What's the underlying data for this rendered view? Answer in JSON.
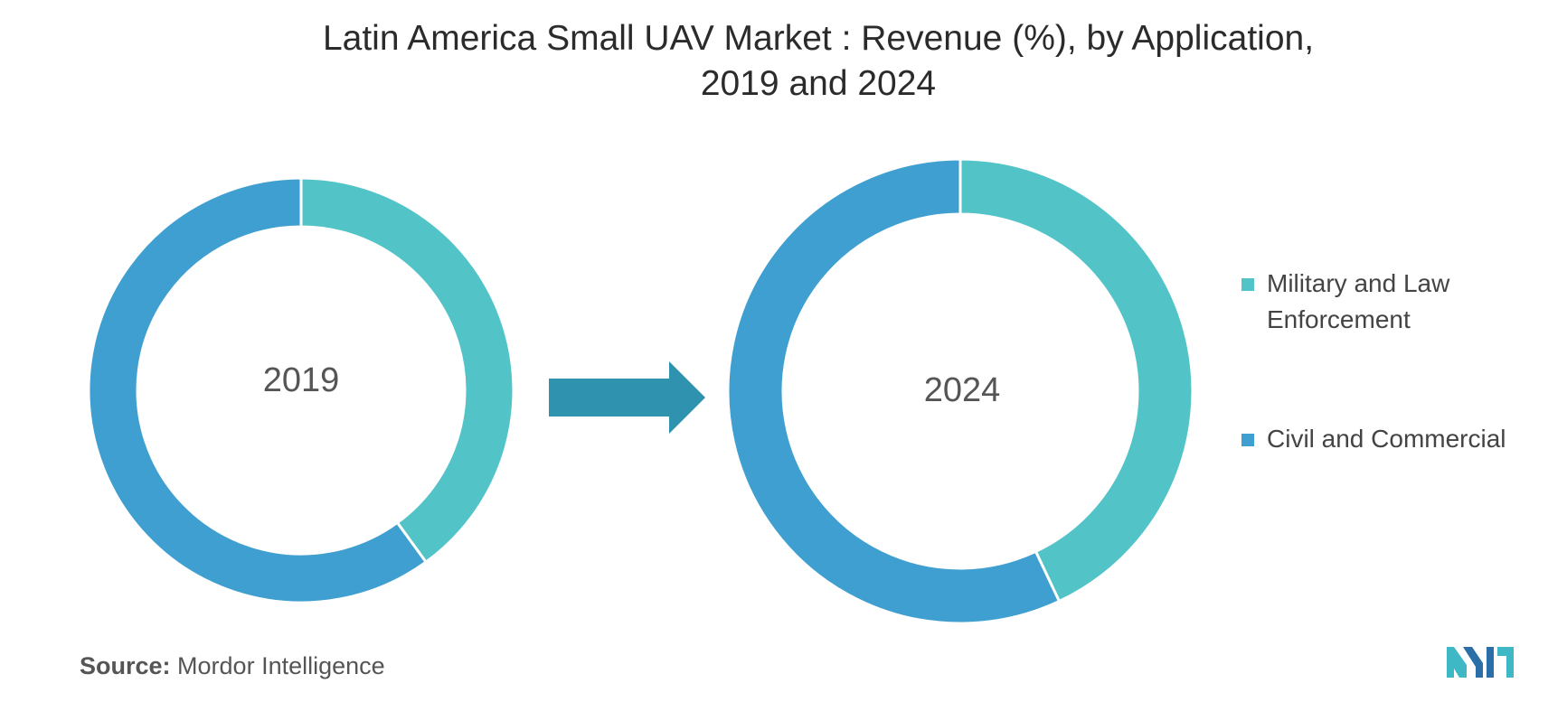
{
  "title_line1": "Latin America Small UAV Market : Revenue (%), by Application,",
  "title_line2": "2019 and 2024",
  "colors": {
    "military": "#52c4c8",
    "civil": "#3f9fd0",
    "arrow": "#2f93b0"
  },
  "chart_data": [
    {
      "type": "pie",
      "center_label": "2019",
      "categories": [
        "Military and Law Enforcement",
        "Civil and Commercial"
      ],
      "values": [
        0.4,
        0.6
      ]
    },
    {
      "type": "pie",
      "center_label": "2024",
      "categories": [
        "Military and Law Enforcement",
        "Civil and Commercial"
      ],
      "values": [
        0.43,
        0.57
      ]
    }
  ],
  "legend": [
    {
      "line1": "Military and Law",
      "line2": "Enforcement"
    },
    {
      "line1": "Civil and Commercial",
      "line2": ""
    }
  ],
  "source_label": "Source:",
  "source_text": "Mordor Intelligence",
  "logo_icon": "mordor-intelligence-logo-icon"
}
